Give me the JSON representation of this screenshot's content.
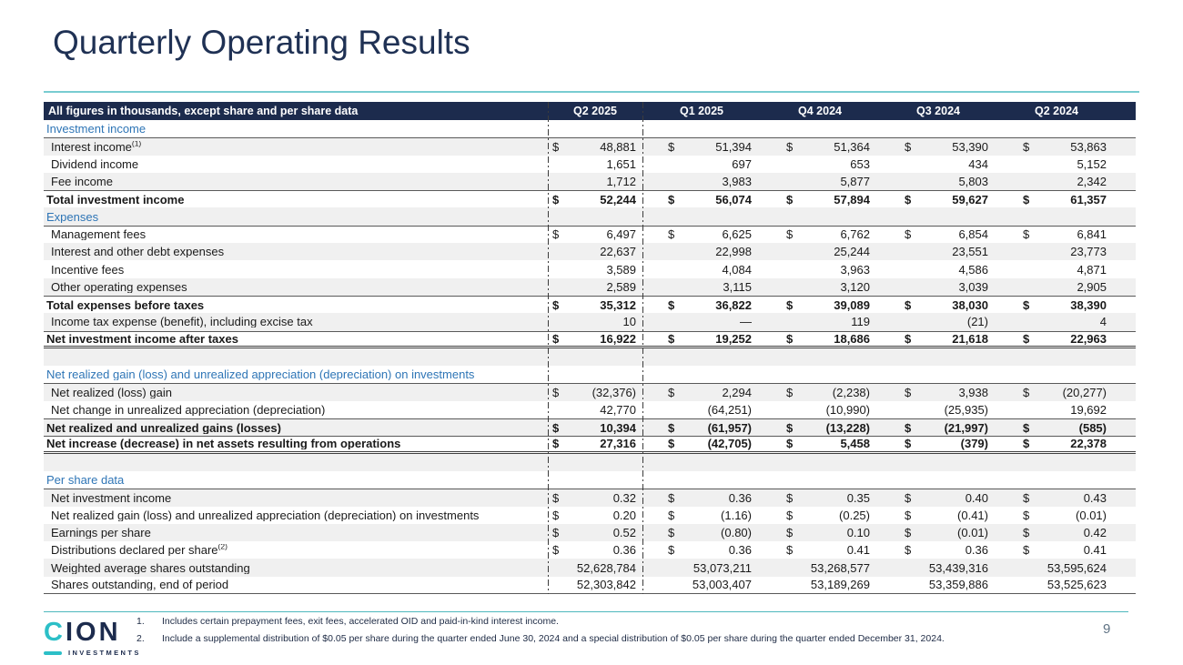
{
  "page": {
    "title": "Quarterly Operating Results",
    "page_number": "9"
  },
  "logo": {
    "c": "C",
    "ion": "ION",
    "sub": "INVESTMENTS"
  },
  "colors": {
    "header_navy": "#1c2b4d",
    "section_blue": "#2e75b6",
    "accent_teal": "#2cbfc7",
    "rule_teal": "#79ccd1",
    "stripe_gray": "#f0f0f0"
  },
  "table": {
    "caption": "All figures in thousands, except share and per share data",
    "columns": [
      "Q2 2025",
      "Q1 2025",
      "Q4 2024",
      "Q3 2024",
      "Q2 2024"
    ],
    "rows": [
      {
        "kind": "section",
        "label": "Investment income"
      },
      {
        "kind": "data",
        "label": "Interest income",
        "sup": "(1)",
        "dollar": true,
        "bt": true,
        "values": [
          "48,881",
          "51,394",
          "51,364",
          "53,390",
          "53,863"
        ]
      },
      {
        "kind": "data",
        "label": "Dividend income",
        "values": [
          "1,651",
          "697",
          "653",
          "434",
          "5,152"
        ]
      },
      {
        "kind": "data",
        "label": "Fee income",
        "values": [
          "1,712",
          "3,983",
          "5,877",
          "5,803",
          "2,342"
        ]
      },
      {
        "kind": "total",
        "label": "Total investment income",
        "dollar": true,
        "bt": true,
        "values": [
          "52,244",
          "56,074",
          "57,894",
          "59,627",
          "61,357"
        ]
      },
      {
        "kind": "section",
        "label": "Expenses"
      },
      {
        "kind": "data",
        "label": "Management fees",
        "dollar": true,
        "bt": true,
        "values": [
          "6,497",
          "6,625",
          "6,762",
          "6,854",
          "6,841"
        ]
      },
      {
        "kind": "data",
        "label": "Interest and other debt expenses",
        "values": [
          "22,637",
          "22,998",
          "25,244",
          "23,551",
          "23,773"
        ]
      },
      {
        "kind": "data",
        "label": "Incentive fees",
        "values": [
          "3,589",
          "4,084",
          "3,963",
          "4,586",
          "4,871"
        ]
      },
      {
        "kind": "data",
        "label": "Other operating expenses",
        "values": [
          "2,589",
          "3,115",
          "3,120",
          "3,039",
          "2,905"
        ]
      },
      {
        "kind": "total",
        "label": "Total expenses before taxes",
        "dollar": true,
        "bt": true,
        "values": [
          "35,312",
          "36,822",
          "39,089",
          "38,030",
          "38,390"
        ]
      },
      {
        "kind": "data",
        "label": "Income tax expense (benefit), including excise tax",
        "values": [
          "10",
          "—",
          "119",
          "(21)",
          "4"
        ]
      },
      {
        "kind": "total",
        "label": "Net investment income after taxes",
        "dollar": true,
        "bt": true,
        "bb": "double",
        "values": [
          "16,922",
          "19,252",
          "18,686",
          "21,618",
          "22,963"
        ]
      },
      {
        "kind": "blank",
        "label": ""
      },
      {
        "kind": "section",
        "label": "Net realized gain (loss) and unrealized appreciation (depreciation) on investments"
      },
      {
        "kind": "data",
        "label": "Net realized (loss) gain",
        "dollar": true,
        "bt": true,
        "values": [
          "(32,376)",
          "2,294",
          "(2,238)",
          "3,938",
          "(20,277)"
        ]
      },
      {
        "kind": "data",
        "label": "Net change in unrealized appreciation (depreciation)",
        "values": [
          "42,770",
          "(64,251)",
          "(10,990)",
          "(25,935)",
          "19,692"
        ]
      },
      {
        "kind": "total",
        "label": "Net realized and unrealized gains (losses)",
        "dollar": true,
        "bt": true,
        "values": [
          "10,394",
          "(61,957)",
          "(13,228)",
          "(21,997)",
          "(585)"
        ]
      },
      {
        "kind": "total",
        "label": "Net increase (decrease) in net assets resulting from operations",
        "dollar": true,
        "bt": true,
        "bb": "double",
        "values": [
          "27,316",
          "(42,705)",
          "5,458",
          "(379)",
          "22,378"
        ]
      },
      {
        "kind": "blank",
        "label": ""
      },
      {
        "kind": "section",
        "label": "Per share data"
      },
      {
        "kind": "data",
        "label": "Net investment income",
        "dollar": true,
        "bt": true,
        "values": [
          "0.32",
          "0.36",
          "0.35",
          "0.40",
          "0.43"
        ]
      },
      {
        "kind": "data",
        "label": "Net realized gain (loss) and unrealized appreciation (depreciation) on investments",
        "dollar": true,
        "values": [
          "0.20",
          "(1.16)",
          "(0.25)",
          "(0.41)",
          "(0.01)"
        ]
      },
      {
        "kind": "data",
        "label": "Earnings per share",
        "dollar": true,
        "values": [
          "0.52",
          "(0.80)",
          "0.10",
          "(0.01)",
          "0.42"
        ]
      },
      {
        "kind": "data",
        "label": "Distributions declared per share",
        "sup": "(2)",
        "dollar": true,
        "values": [
          "0.36",
          "0.36",
          "0.41",
          "0.36",
          "0.41"
        ]
      },
      {
        "kind": "data",
        "label": "Weighted average shares outstanding",
        "values": [
          "52,628,784",
          "53,073,211",
          "53,268,577",
          "53,439,316",
          "53,595,624"
        ]
      },
      {
        "kind": "data",
        "label": "Shares outstanding, end of period",
        "bb": "single",
        "values": [
          "52,303,842",
          "53,003,407",
          "53,189,269",
          "53,359,886",
          "53,525,623"
        ]
      }
    ]
  },
  "footnotes": [
    {
      "num": "1.",
      "text": "Includes certain prepayment fees, exit fees, accelerated OID and paid-in-kind interest income."
    },
    {
      "num": "2.",
      "text": "Include a supplemental distribution of $0.05 per share during the quarter ended June 30, 2024 and a special distribution of $0.05 per share during the quarter ended December 31, 2024."
    }
  ]
}
